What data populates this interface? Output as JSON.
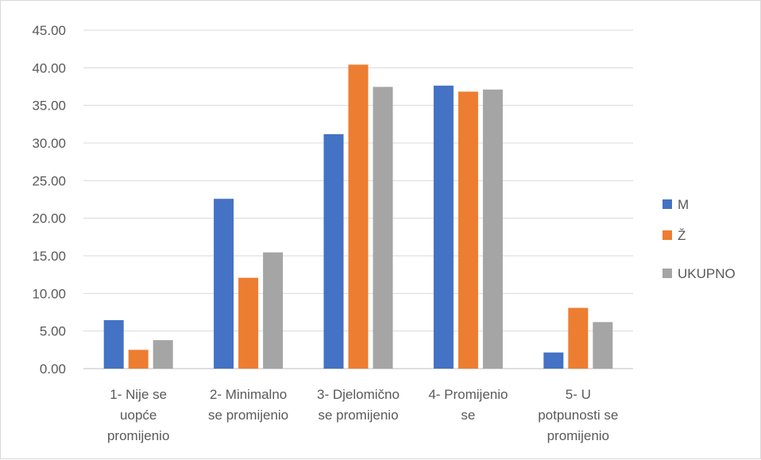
{
  "chart_data": {
    "type": "bar",
    "categories": [
      [
        "1- Nije se",
        "uopće",
        "promijenio"
      ],
      [
        "2- Minimalno",
        "se promijenio"
      ],
      [
        "3- Djelomično",
        "se promijenio"
      ],
      [
        "4- Promijenio",
        "se"
      ],
      [
        "5- U",
        "potpunosti se",
        "promijenio"
      ]
    ],
    "series": [
      {
        "name": "M",
        "color": "#4472c4",
        "values": [
          6.45,
          22.58,
          31.18,
          37.63,
          2.15
        ]
      },
      {
        "name": "Ž",
        "color": "#ed7d31",
        "values": [
          2.5,
          12.08,
          40.42,
          36.83,
          8.08
        ]
      },
      {
        "name": "UKUPNO",
        "color": "#a5a5a5",
        "values": [
          3.79,
          15.46,
          37.46,
          37.11,
          6.19
        ]
      }
    ],
    "ylim": [
      0,
      45
    ],
    "yticks": [
      "0.00",
      "5.00",
      "10.00",
      "15.00",
      "20.00",
      "25.00",
      "30.00",
      "35.00",
      "40.00",
      "45.00"
    ],
    "grid": true,
    "legend_position": "right"
  }
}
